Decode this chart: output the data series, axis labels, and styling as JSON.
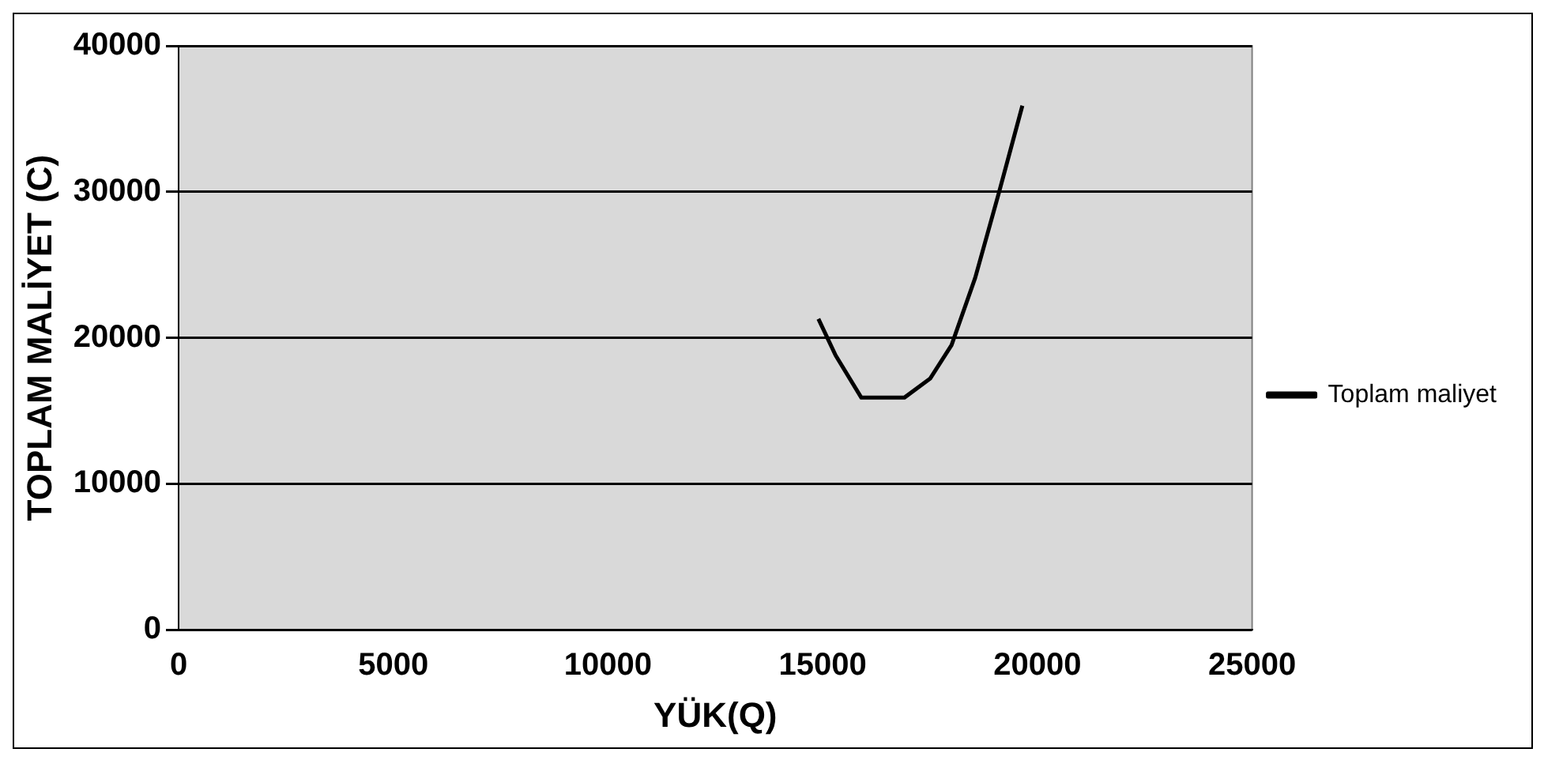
{
  "chart_data": {
    "type": "line",
    "xlabel": "YÜK(Q)",
    "ylabel": "TOPLAM MALİYET (C)",
    "series": [
      {
        "name": "Toplam maliyet",
        "color": "#000000",
        "x": [
          14900,
          15300,
          15900,
          16900,
          17500,
          18000,
          18550,
          19100,
          19650
        ],
        "values": [
          21300,
          18800,
          15900,
          15900,
          17200,
          19500,
          24100,
          29900,
          35900
        ]
      }
    ],
    "xlim": [
      0,
      25000
    ],
    "xticks": [
      0,
      5000,
      10000,
      15000,
      20000,
      25000
    ],
    "ylim": [
      0,
      40000
    ],
    "yticks": [
      0,
      10000,
      20000,
      30000,
      40000
    ],
    "grid": "y",
    "legend": "right",
    "marker": "none",
    "line_style": "solid"
  }
}
